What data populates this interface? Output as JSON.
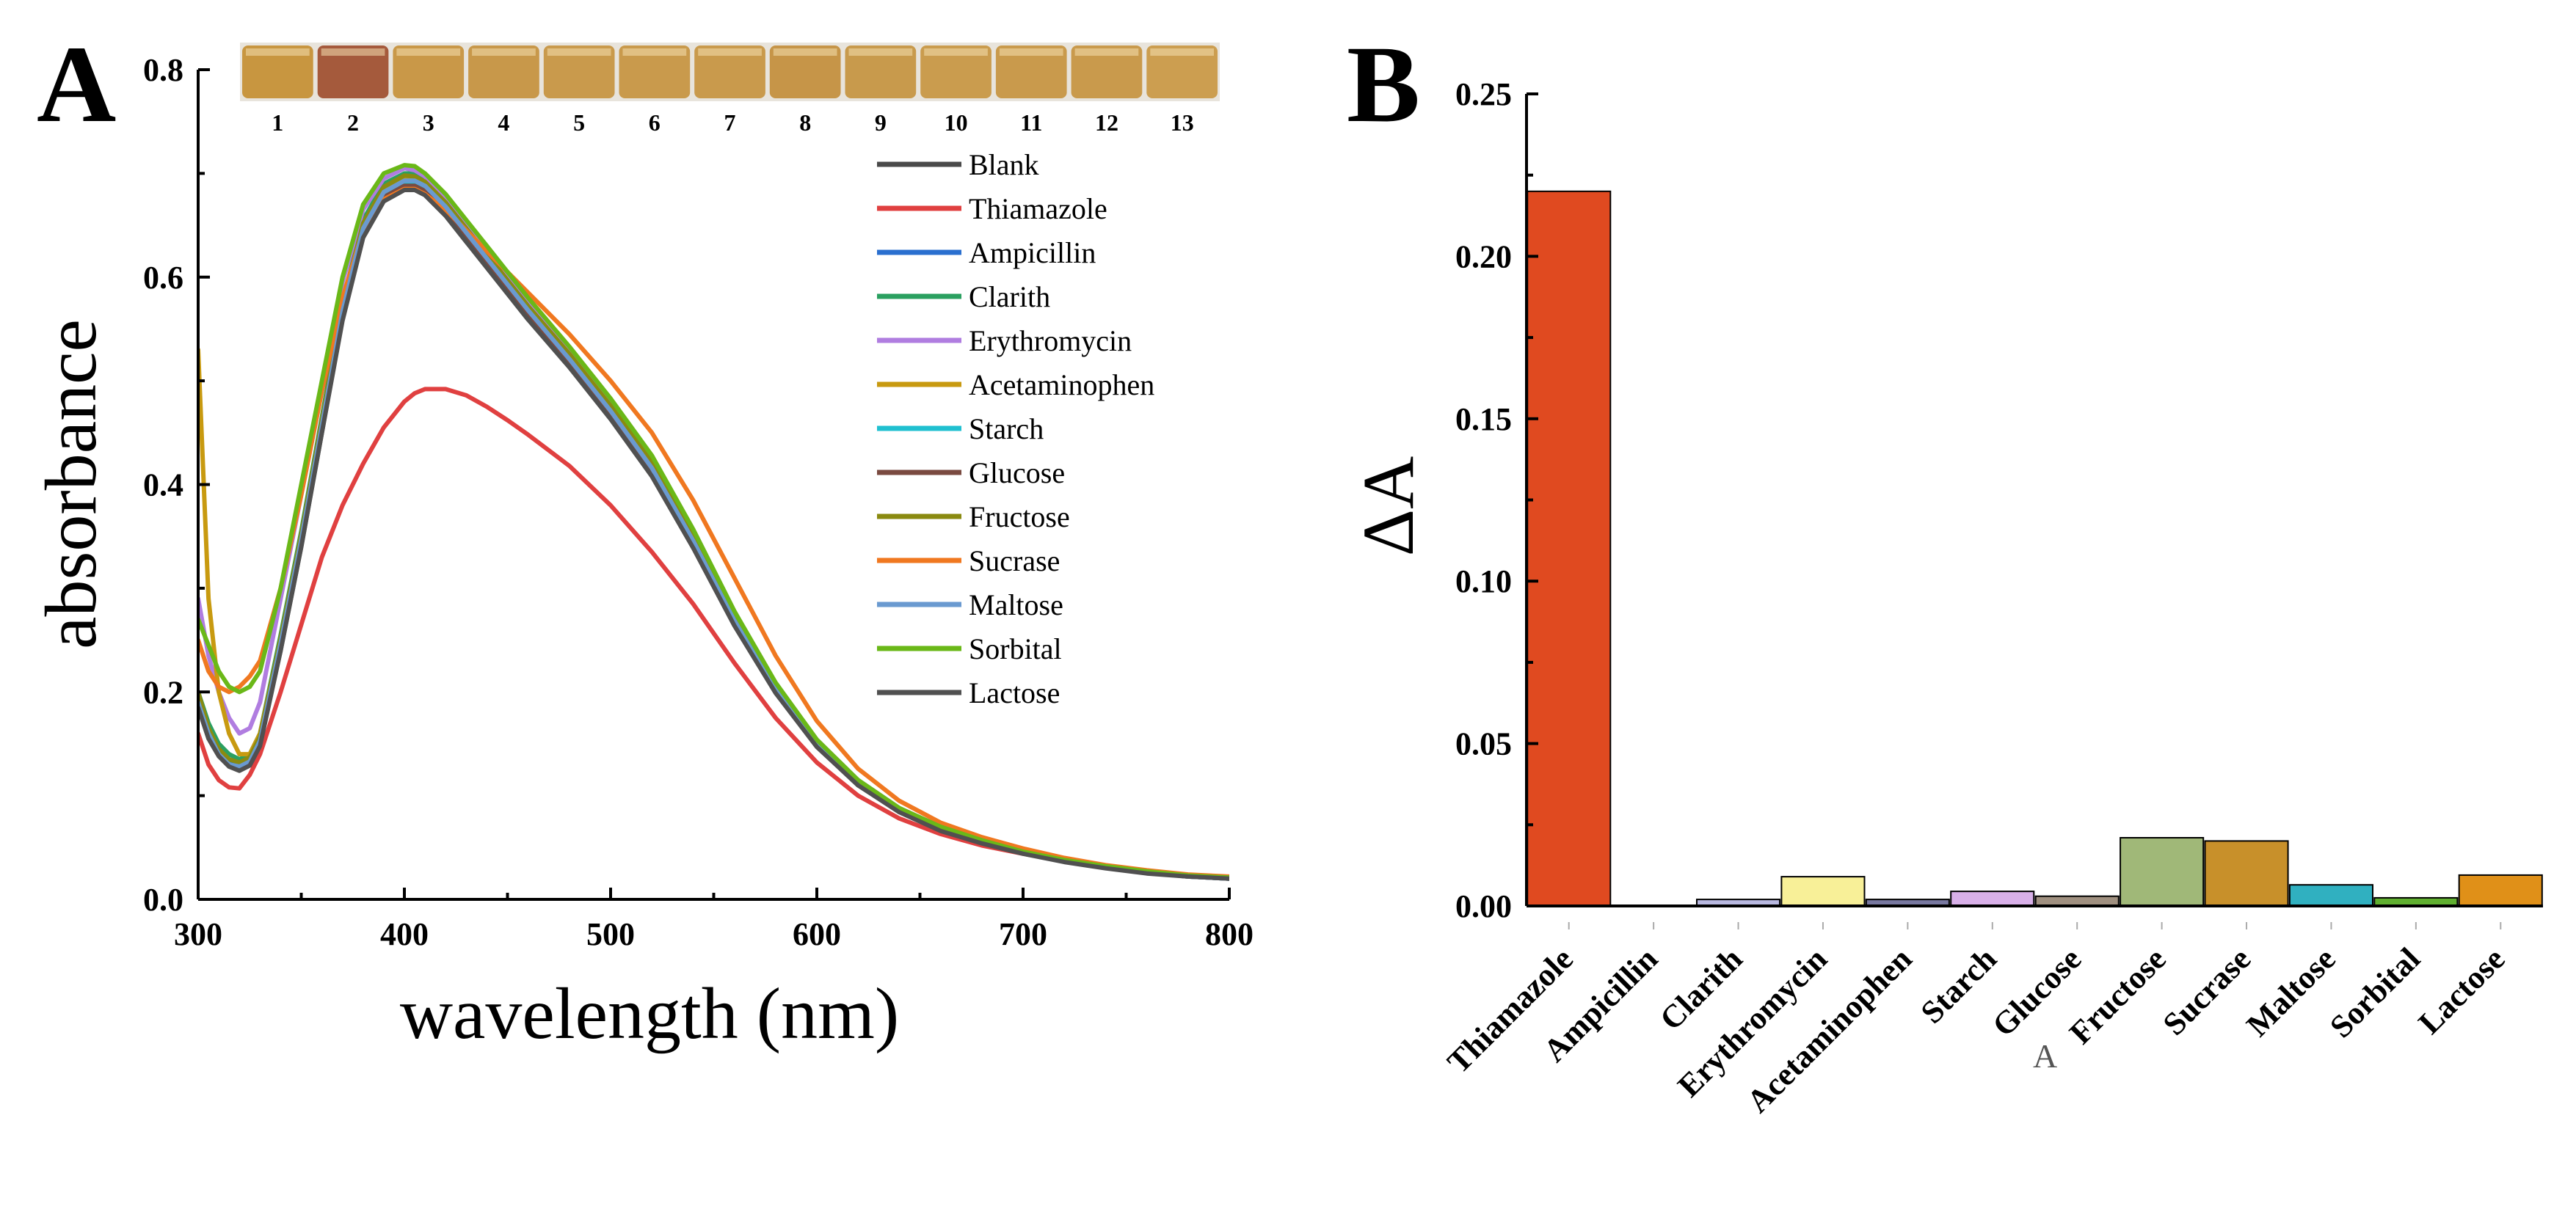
{
  "figure": {
    "panel_a_letter": "A",
    "panel_b_letter": "B"
  },
  "chart_data": [
    {
      "type": "line",
      "panel": "A",
      "xlabel": "wavelength (nm)",
      "ylabel": "absorbance",
      "xlim": [
        300,
        800
      ],
      "ylim": [
        0.0,
        0.8
      ],
      "xticks": [
        300,
        400,
        500,
        600,
        700,
        800
      ],
      "xtick_labels": [
        "300",
        "400",
        "500",
        "600",
        "700",
        "800"
      ],
      "yticks": [
        0.0,
        0.2,
        0.4,
        0.6,
        0.8
      ],
      "ytick_labels": [
        "0.0",
        "0.2",
        "0.4",
        "0.6",
        "0.8"
      ],
      "legend_position": "top-right",
      "x": [
        300,
        305,
        310,
        315,
        320,
        325,
        330,
        340,
        350,
        360,
        370,
        380,
        390,
        400,
        405,
        410,
        420,
        430,
        440,
        450,
        460,
        480,
        500,
        520,
        540,
        560,
        580,
        600,
        620,
        640,
        660,
        680,
        700,
        720,
        740,
        760,
        780,
        800
      ],
      "series": [
        {
          "name": "Blank",
          "color": "#4a4a4a",
          "values": [
            0.19,
            0.16,
            0.14,
            0.13,
            0.125,
            0.13,
            0.15,
            0.24,
            0.34,
            0.45,
            0.56,
            0.64,
            0.675,
            0.685,
            0.685,
            0.68,
            0.66,
            0.635,
            0.61,
            0.585,
            0.56,
            0.515,
            0.465,
            0.41,
            0.34,
            0.265,
            0.2,
            0.148,
            0.11,
            0.085,
            0.067,
            0.055,
            0.045,
            0.037,
            0.031,
            0.026,
            0.022,
            0.02
          ]
        },
        {
          "name": "Thiamazole",
          "color": "#e04040",
          "values": [
            0.16,
            0.13,
            0.115,
            0.108,
            0.107,
            0.12,
            0.14,
            0.2,
            0.265,
            0.33,
            0.38,
            0.42,
            0.455,
            0.48,
            0.488,
            0.492,
            0.492,
            0.486,
            0.475,
            0.462,
            0.448,
            0.418,
            0.38,
            0.335,
            0.285,
            0.228,
            0.175,
            0.132,
            0.1,
            0.078,
            0.063,
            0.052,
            0.044,
            0.037,
            0.031,
            0.027,
            0.023,
            0.021
          ]
        },
        {
          "name": "Ampicillin",
          "color": "#2a6fcf",
          "values": [
            0.2,
            0.16,
            0.145,
            0.135,
            0.13,
            0.135,
            0.155,
            0.25,
            0.35,
            0.46,
            0.57,
            0.65,
            0.685,
            0.698,
            0.698,
            0.693,
            0.673,
            0.648,
            0.622,
            0.597,
            0.572,
            0.525,
            0.475,
            0.42,
            0.35,
            0.272,
            0.205,
            0.152,
            0.113,
            0.087,
            0.069,
            0.056,
            0.046,
            0.038,
            0.032,
            0.027,
            0.023,
            0.021
          ]
        },
        {
          "name": "Clarith",
          "color": "#2aa060",
          "values": [
            0.2,
            0.17,
            0.15,
            0.14,
            0.135,
            0.14,
            0.16,
            0.255,
            0.355,
            0.465,
            0.575,
            0.655,
            0.69,
            0.7,
            0.7,
            0.695,
            0.675,
            0.65,
            0.625,
            0.6,
            0.575,
            0.528,
            0.478,
            0.423,
            0.353,
            0.275,
            0.207,
            0.153,
            0.114,
            0.088,
            0.069,
            0.057,
            0.046,
            0.038,
            0.032,
            0.027,
            0.023,
            0.021
          ]
        },
        {
          "name": "Erythromycin",
          "color": "#b07de0",
          "values": [
            0.29,
            0.235,
            0.2,
            0.175,
            0.16,
            0.165,
            0.19,
            0.29,
            0.39,
            0.49,
            0.595,
            0.665,
            0.695,
            0.705,
            0.703,
            0.697,
            0.677,
            0.652,
            0.627,
            0.602,
            0.577,
            0.53,
            0.48,
            0.425,
            0.355,
            0.277,
            0.208,
            0.154,
            0.115,
            0.088,
            0.07,
            0.057,
            0.046,
            0.038,
            0.032,
            0.027,
            0.023,
            0.021
          ]
        },
        {
          "name": "Acetaminophen",
          "color": "#c89a10",
          "values": [
            0.53,
            0.29,
            0.2,
            0.16,
            0.14,
            0.14,
            0.16,
            0.25,
            0.35,
            0.46,
            0.57,
            0.65,
            0.685,
            0.695,
            0.695,
            0.69,
            0.67,
            0.645,
            0.62,
            0.595,
            0.57,
            0.523,
            0.473,
            0.418,
            0.348,
            0.27,
            0.203,
            0.15,
            0.112,
            0.086,
            0.068,
            0.056,
            0.046,
            0.038,
            0.032,
            0.027,
            0.023,
            0.021
          ]
        },
        {
          "name": "Starch",
          "color": "#20c0d0",
          "values": [
            0.19,
            0.16,
            0.14,
            0.13,
            0.128,
            0.133,
            0.152,
            0.245,
            0.345,
            0.455,
            0.565,
            0.645,
            0.68,
            0.69,
            0.69,
            0.685,
            0.665,
            0.64,
            0.615,
            0.59,
            0.565,
            0.518,
            0.468,
            0.413,
            0.343,
            0.267,
            0.201,
            0.149,
            0.111,
            0.085,
            0.067,
            0.055,
            0.045,
            0.037,
            0.031,
            0.026,
            0.022,
            0.02
          ]
        },
        {
          "name": "Glucose",
          "color": "#7a4a40",
          "values": [
            0.19,
            0.16,
            0.14,
            0.13,
            0.126,
            0.131,
            0.15,
            0.243,
            0.343,
            0.452,
            0.562,
            0.642,
            0.677,
            0.688,
            0.688,
            0.683,
            0.663,
            0.638,
            0.613,
            0.588,
            0.563,
            0.517,
            0.467,
            0.412,
            0.342,
            0.266,
            0.2,
            0.148,
            0.11,
            0.085,
            0.067,
            0.055,
            0.045,
            0.037,
            0.031,
            0.026,
            0.022,
            0.02
          ]
        },
        {
          "name": "Fructose",
          "color": "#8a8a10",
          "values": [
            0.2,
            0.165,
            0.145,
            0.135,
            0.132,
            0.137,
            0.157,
            0.252,
            0.352,
            0.462,
            0.572,
            0.652,
            0.687,
            0.698,
            0.697,
            0.692,
            0.672,
            0.647,
            0.622,
            0.597,
            0.572,
            0.526,
            0.476,
            0.421,
            0.351,
            0.273,
            0.206,
            0.152,
            0.113,
            0.087,
            0.069,
            0.056,
            0.046,
            0.038,
            0.032,
            0.027,
            0.023,
            0.021
          ]
        },
        {
          "name": "Sucrase",
          "color": "#f07820",
          "values": [
            0.25,
            0.22,
            0.205,
            0.2,
            0.205,
            0.215,
            0.23,
            0.3,
            0.39,
            0.49,
            0.58,
            0.645,
            0.675,
            0.685,
            0.685,
            0.68,
            0.665,
            0.645,
            0.625,
            0.605,
            0.585,
            0.545,
            0.5,
            0.45,
            0.385,
            0.31,
            0.235,
            0.172,
            0.126,
            0.095,
            0.074,
            0.06,
            0.049,
            0.04,
            0.033,
            0.028,
            0.024,
            0.022
          ]
        },
        {
          "name": "Maltose",
          "color": "#6a9ad0",
          "values": [
            0.19,
            0.16,
            0.14,
            0.13,
            0.128,
            0.133,
            0.153,
            0.247,
            0.347,
            0.457,
            0.567,
            0.647,
            0.682,
            0.693,
            0.693,
            0.688,
            0.668,
            0.643,
            0.618,
            0.593,
            0.568,
            0.521,
            0.471,
            0.416,
            0.346,
            0.269,
            0.202,
            0.15,
            0.112,
            0.086,
            0.068,
            0.055,
            0.045,
            0.037,
            0.031,
            0.026,
            0.022,
            0.02
          ]
        },
        {
          "name": "Sorbital",
          "color": "#6ab818",
          "values": [
            0.27,
            0.245,
            0.22,
            0.205,
            0.2,
            0.205,
            0.22,
            0.3,
            0.4,
            0.5,
            0.6,
            0.67,
            0.7,
            0.708,
            0.707,
            0.7,
            0.68,
            0.655,
            0.63,
            0.605,
            0.58,
            0.533,
            0.483,
            0.428,
            0.357,
            0.278,
            0.209,
            0.154,
            0.115,
            0.088,
            0.07,
            0.057,
            0.046,
            0.038,
            0.032,
            0.027,
            0.023,
            0.021
          ]
        },
        {
          "name": "Lactose",
          "color": "#505050",
          "values": [
            0.185,
            0.155,
            0.138,
            0.128,
            0.124,
            0.129,
            0.148,
            0.24,
            0.34,
            0.45,
            0.558,
            0.638,
            0.673,
            0.684,
            0.684,
            0.679,
            0.659,
            0.634,
            0.609,
            0.584,
            0.559,
            0.513,
            0.463,
            0.408,
            0.339,
            0.264,
            0.199,
            0.147,
            0.11,
            0.084,
            0.066,
            0.054,
            0.044,
            0.036,
            0.03,
            0.025,
            0.022,
            0.02
          ]
        }
      ],
      "inset": {
        "description": "photo strip of vials",
        "labels": [
          "1",
          "2",
          "3",
          "4",
          "5",
          "6",
          "7",
          "8",
          "9",
          "10",
          "11",
          "12",
          "13"
        ],
        "colors": [
          "#c89640",
          "#a55a3c",
          "#c99848",
          "#c8984a",
          "#c99a4c",
          "#c99a4c",
          "#c99a4c",
          "#c69548",
          "#c89a4c",
          "#ca9c4e",
          "#c99a4c",
          "#c99a4c",
          "#cc9e50"
        ]
      }
    },
    {
      "type": "bar",
      "panel": "B",
      "ylabel": "ΔA",
      "xlabel": "",
      "ylim": [
        0.0,
        0.25
      ],
      "yticks": [
        0.0,
        0.05,
        0.1,
        0.15,
        0.2,
        0.25
      ],
      "ytick_labels": [
        "0.00",
        "0.05",
        "0.10",
        "0.15",
        "0.20",
        "0.25"
      ],
      "categories": [
        "Thiamazole",
        "Ampicillin",
        "Clarith",
        "Erythromycin",
        "Acetaminophen",
        "Starch",
        "Glucose",
        "Fructose",
        "Sucrase",
        "Maltose",
        "Sorbital",
        "Lactose"
      ],
      "values": [
        0.22,
        0.0,
        0.002,
        0.009,
        0.002,
        0.0045,
        0.003,
        0.021,
        0.02,
        0.0065,
        0.0025,
        0.0095
      ],
      "colors": [
        "#e04a20",
        "#4a6ad0",
        "#b8b8e0",
        "#f8f098",
        "#7878a0",
        "#d8b0e8",
        "#a09080",
        "#a0b878",
        "#c8902a",
        "#30b0c0",
        "#60b030",
        "#e09018"
      ],
      "stray_glyph": "A"
    }
  ]
}
